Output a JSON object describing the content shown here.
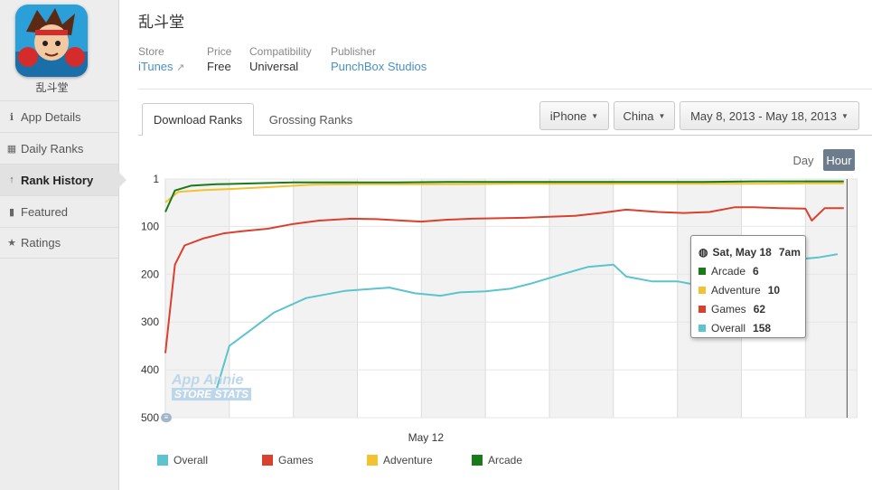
{
  "app": {
    "title": "乱斗堂",
    "short_name": "乱斗堂",
    "icon": "app-icon-brawler"
  },
  "meta": {
    "store_label": "Store",
    "store_value": "iTunes",
    "price_label": "Price",
    "price_value": "Free",
    "compat_label": "Compatibility",
    "compat_value": "Universal",
    "publisher_label": "Publisher",
    "publisher_value": "PunchBox Studios"
  },
  "sidebar": {
    "items": [
      {
        "label": "App Details",
        "icon": "info-icon"
      },
      {
        "label": "Daily Ranks",
        "icon": "calendar-icon"
      },
      {
        "label": "Rank History",
        "icon": "arrow-up-icon",
        "active": true
      },
      {
        "label": "Featured",
        "icon": "bookmark-icon"
      },
      {
        "label": "Ratings",
        "icon": "star-icon"
      }
    ]
  },
  "tabs": {
    "download": "Download Ranks",
    "grossing": "Grossing Ranks"
  },
  "filters": {
    "device": "iPhone",
    "country": "China",
    "date_range": "May 8, 2013 - May 18, 2013"
  },
  "granularity": {
    "day": "Day",
    "hour": "Hour",
    "selected": "Hour"
  },
  "tooltip": {
    "date": "Sat, May 18",
    "time": "7am",
    "rows": [
      {
        "name": "Arcade",
        "value": "6",
        "color": "#1a7a1a"
      },
      {
        "name": "Adventure",
        "value": "10",
        "color": "#f2c233"
      },
      {
        "name": "Games",
        "value": "62",
        "color": "#d9412e"
      },
      {
        "name": "Overall",
        "value": "158",
        "color": "#5bc4cc"
      }
    ]
  },
  "watermark": {
    "line1": "App Annie",
    "line2": "STORE STATS"
  },
  "chart_data": {
    "type": "line",
    "ylabel": "",
    "xlabel": "",
    "y_inverted": true,
    "ylim": [
      1,
      500
    ],
    "yticks": [
      "1",
      "100",
      "200",
      "300",
      "400",
      "500"
    ],
    "ytick_values": [
      1,
      100,
      200,
      300,
      400,
      500
    ],
    "xlim": [
      8.0,
      18.8
    ],
    "xticks": [
      {
        "label": "May 12",
        "value": 12
      }
    ],
    "legend_position": "bottom",
    "grid": true,
    "series": [
      {
        "name": "Overall",
        "color": "#5bc4cc",
        "x": [
          8.8,
          9.0,
          9.3,
          9.7,
          10.2,
          10.8,
          11.5,
          11.9,
          12.3,
          12.6,
          13.0,
          13.4,
          13.7,
          14.2,
          14.6,
          15.0,
          15.2,
          15.6,
          16.0,
          16.4,
          16.8,
          17.0,
          17.4,
          17.8,
          18.2,
          18.5
        ],
        "values": [
          440,
          350,
          320,
          280,
          250,
          235,
          228,
          240,
          245,
          238,
          236,
          230,
          220,
          200,
          185,
          180,
          205,
          215,
          215,
          225,
          245,
          220,
          190,
          170,
          165,
          158
        ]
      },
      {
        "name": "Games",
        "color": "#d9412e",
        "x": [
          8.0,
          8.15,
          8.3,
          8.6,
          8.9,
          9.2,
          9.6,
          10.0,
          10.4,
          10.9,
          11.3,
          11.7,
          12.0,
          12.4,
          12.8,
          13.2,
          13.6,
          14.0,
          14.4,
          14.8,
          15.2,
          15.7,
          16.1,
          16.5,
          16.9,
          17.2,
          17.6,
          18.0,
          18.1,
          18.3,
          18.6
        ],
        "values": [
          365,
          180,
          140,
          125,
          115,
          110,
          105,
          95,
          88,
          84,
          85,
          88,
          90,
          86,
          84,
          83,
          82,
          80,
          78,
          72,
          65,
          70,
          72,
          70,
          60,
          60,
          62,
          63,
          88,
          62,
          62
        ]
      },
      {
        "name": "Adventure",
        "color": "#f2c233",
        "x": [
          8.0,
          8.2,
          8.6,
          9.0,
          9.6,
          10.3,
          11.0,
          11.8,
          12.6,
          13.4,
          14.2,
          15.0,
          15.8,
          16.6,
          17.4,
          18.0,
          18.6
        ],
        "values": [
          50,
          28,
          24,
          22,
          18,
          13,
          12,
          12,
          12,
          11,
          11,
          11,
          11,
          11,
          11,
          10,
          10
        ]
      },
      {
        "name": "Arcade",
        "color": "#1a7a1a",
        "x": [
          8.0,
          8.15,
          8.4,
          8.8,
          9.4,
          10.0,
          10.8,
          11.6,
          12.4,
          13.2,
          14.0,
          14.8,
          15.6,
          16.4,
          17.2,
          17.8,
          18.6
        ],
        "values": [
          70,
          25,
          15,
          12,
          10,
          8,
          8,
          8,
          7,
          7,
          7,
          7,
          7,
          7,
          6,
          6,
          6
        ]
      }
    ]
  }
}
